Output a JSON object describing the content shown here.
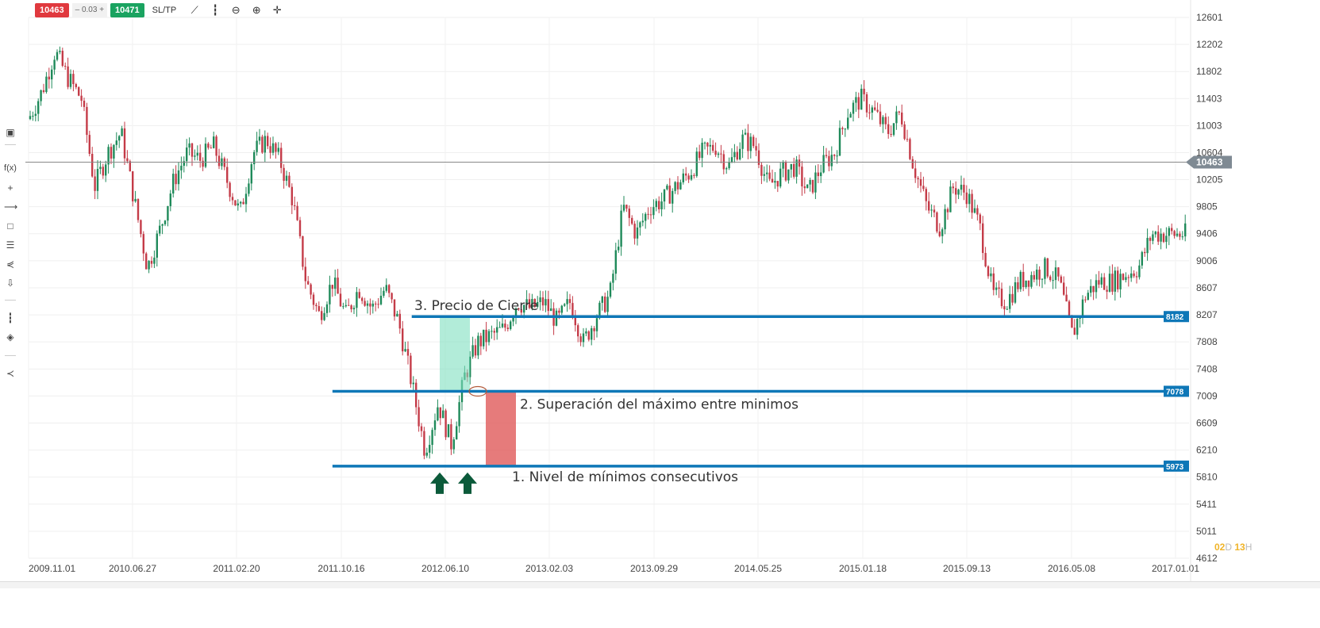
{
  "toolbar": {
    "sell_price": "10463",
    "spread": "0.03",
    "buy_price": "10471",
    "sltp_label": "SL/TP",
    "minus_sign": "–",
    "plus_sign": "+"
  },
  "timeframe": {
    "d": "02",
    "d_unit": "D",
    "h": "13",
    "h_unit": "H"
  },
  "chart_data": {
    "type": "candlestick",
    "y_ticks": [
      12601,
      12202,
      11802,
      11403,
      11003,
      10604,
      10205,
      9805,
      9406,
      9006,
      8607,
      8207,
      7808,
      7408,
      7009,
      6609,
      6210,
      5810,
      5411,
      5011,
      4612
    ],
    "x_ticks": [
      "2009.11.01",
      "2010.06.27",
      "2011.02.20",
      "2011.10.16",
      "2012.06.10",
      "2013.02.03",
      "2013.09.29",
      "2014.05.25",
      "2015.01.18",
      "2015.09.13",
      "2016.05.08",
      "2017.01.01"
    ],
    "ylim": [
      4612,
      12601
    ],
    "current_price": 10463,
    "current_price_label": "10463",
    "close_path": [
      [
        "2009.11",
        11100
      ],
      [
        "2009.12",
        11500
      ],
      [
        "2010.01",
        12100
      ],
      [
        "2010.02",
        11700
      ],
      [
        "2010.03",
        11400
      ],
      [
        "2010.04",
        10100
      ],
      [
        "2010.05",
        10600
      ],
      [
        "2010.06",
        10900
      ],
      [
        "2010.07",
        9900
      ],
      [
        "2010.08",
        8900
      ],
      [
        "2010.09",
        9500
      ],
      [
        "2010.10",
        10200
      ],
      [
        "2010.11",
        10600
      ],
      [
        "2010.12",
        10500
      ],
      [
        "2011.01",
        10700
      ],
      [
        "2011.02",
        10200
      ],
      [
        "2011.03",
        9700
      ],
      [
        "2011.04",
        10600
      ],
      [
        "2011.05",
        10800
      ],
      [
        "2011.06",
        10500
      ],
      [
        "2011.07",
        9900
      ],
      [
        "2011.08",
        8700
      ],
      [
        "2011.09",
        8200
      ],
      [
        "2011.10",
        8700
      ],
      [
        "2011.11",
        8200
      ],
      [
        "2011.12",
        8600
      ],
      [
        "2012.01",
        8300
      ],
      [
        "2012.02",
        8600
      ],
      [
        "2012.03",
        8100
      ],
      [
        "2012.04",
        7200
      ],
      [
        "2012.05",
        6200
      ],
      [
        "2012.06",
        6900
      ],
      [
        "2012.07",
        6300
      ],
      [
        "2012.08",
        7300
      ],
      [
        "2012.09",
        7800
      ],
      [
        "2012.10",
        7900
      ],
      [
        "2012.11",
        8000
      ],
      [
        "2012.12",
        8400
      ],
      [
        "2013.01",
        8300
      ],
      [
        "2013.02",
        8400
      ],
      [
        "2013.03",
        8100
      ],
      [
        "2013.04",
        8400
      ],
      [
        "2013.05",
        7800
      ],
      [
        "2013.06",
        8200
      ],
      [
        "2013.07",
        8500
      ],
      [
        "2013.08",
        9800
      ],
      [
        "2013.09",
        9400
      ],
      [
        "2013.10",
        9800
      ],
      [
        "2013.11",
        9900
      ],
      [
        "2013.12",
        10100
      ],
      [
        "2014.01",
        10300
      ],
      [
        "2014.02",
        10600
      ],
      [
        "2014.03",
        10700
      ],
      [
        "2014.04",
        10400
      ],
      [
        "2014.05",
        10800
      ],
      [
        "2014.06",
        10700
      ],
      [
        "2014.07",
        10100
      ],
      [
        "2014.08",
        10300
      ],
      [
        "2014.09",
        10400
      ],
      [
        "2014.10",
        10000
      ],
      [
        "2014.11",
        10400
      ],
      [
        "2014.12",
        10600
      ],
      [
        "2015.01",
        11200
      ],
      [
        "2015.02",
        11400
      ],
      [
        "2015.03",
        11200
      ],
      [
        "2015.04",
        10900
      ],
      [
        "2015.05",
        11200
      ],
      [
        "2015.06",
        10400
      ],
      [
        "2015.07",
        9800
      ],
      [
        "2015.08",
        9500
      ],
      [
        "2015.09",
        10100
      ],
      [
        "2015.10",
        10000
      ],
      [
        "2015.11",
        9500
      ],
      [
        "2015.12",
        8500
      ],
      [
        "2016.01",
        8400
      ],
      [
        "2016.02",
        8700
      ],
      [
        "2016.03",
        8800
      ],
      [
        "2016.04",
        8900
      ],
      [
        "2016.05",
        8700
      ],
      [
        "2016.06",
        7900
      ],
      [
        "2016.07",
        8500
      ],
      [
        "2016.08",
        8700
      ],
      [
        "2016.09",
        8700
      ],
      [
        "2016.10",
        8800
      ],
      [
        "2016.11",
        8900
      ],
      [
        "2016.12",
        9400
      ]
    ],
    "levels": [
      {
        "price": 8182,
        "label": "8182",
        "from": "2012.04",
        "note": "3. Precio de Cierre"
      },
      {
        "price": 7078,
        "label": "7078",
        "from": "2011.10",
        "note": "2. Superación del máximo entre minimos"
      },
      {
        "price": 5973,
        "label": "5973",
        "from": "2011.10",
        "note": "1. Nivel de mínimos consecutivos"
      }
    ],
    "annotations": {
      "close_label": "3. Precio de Cierre",
      "break_label": "2. Superación del máximo entre minimos",
      "lows_label": "1. Nivel de mínimos consecutivos"
    },
    "colors": {
      "up": "#1f8a5a",
      "down": "#c43b48",
      "level": "#0e77b7",
      "level_label_bg": "#0e77b7",
      "green_box": "#7fe0c0",
      "red_box": "#e05a5a",
      "arrow": "#0b5a3a",
      "current_line": "#888888",
      "current_label_bg": "#7f8a93"
    },
    "grid": true
  }
}
